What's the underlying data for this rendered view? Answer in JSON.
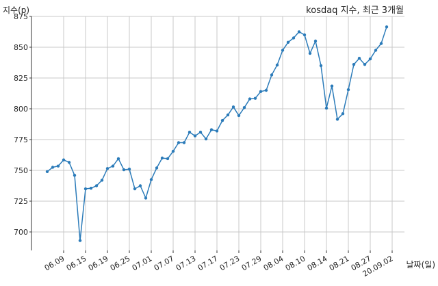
{
  "chart_data": {
    "type": "line",
    "title": "kosdaq 지수, 최근 3개월",
    "xlabel": "날짜(일)",
    "ylabel": "지수(p)",
    "ylim": [
      685,
      875
    ],
    "yticks": [
      700,
      725,
      750,
      775,
      800,
      825,
      850,
      875
    ],
    "grid": true,
    "line_color": "#2b7bb9",
    "xtick_labels": [
      "06.09",
      "06.15",
      "06.19",
      "06.25",
      "07.01",
      "07.07",
      "07.13",
      "07.17",
      "07.23",
      "07.29",
      "08.04",
      "08.10",
      "08.14",
      "08.21",
      "08.27",
      "20.09.02"
    ],
    "xtick_indices": [
      3,
      7,
      11,
      15,
      19,
      23,
      27,
      31,
      35,
      39,
      43,
      47,
      51,
      55,
      59,
      63
    ],
    "series": [
      {
        "values": [
          749,
          752.5,
          753.5,
          758.5,
          756.5,
          746,
          693,
          735,
          735.5,
          737.5,
          742,
          751.5,
          753.5,
          759.5,
          750.5,
          751,
          735,
          737.5,
          727.5,
          742.5,
          752,
          760,
          759.5,
          765.5,
          772.5,
          772.5,
          781,
          778,
          781,
          775.5,
          783,
          782,
          790.5,
          795,
          801.5,
          794.5,
          801,
          808,
          808.5,
          814,
          815,
          827.5,
          835.5,
          847.5,
          854,
          857.5,
          862.5,
          860,
          845,
          855,
          835,
          800.5,
          818.5,
          791.5,
          796,
          815.5,
          836,
          841,
          836,
          840.5,
          847.5,
          853,
          866.5
        ]
      }
    ]
  }
}
